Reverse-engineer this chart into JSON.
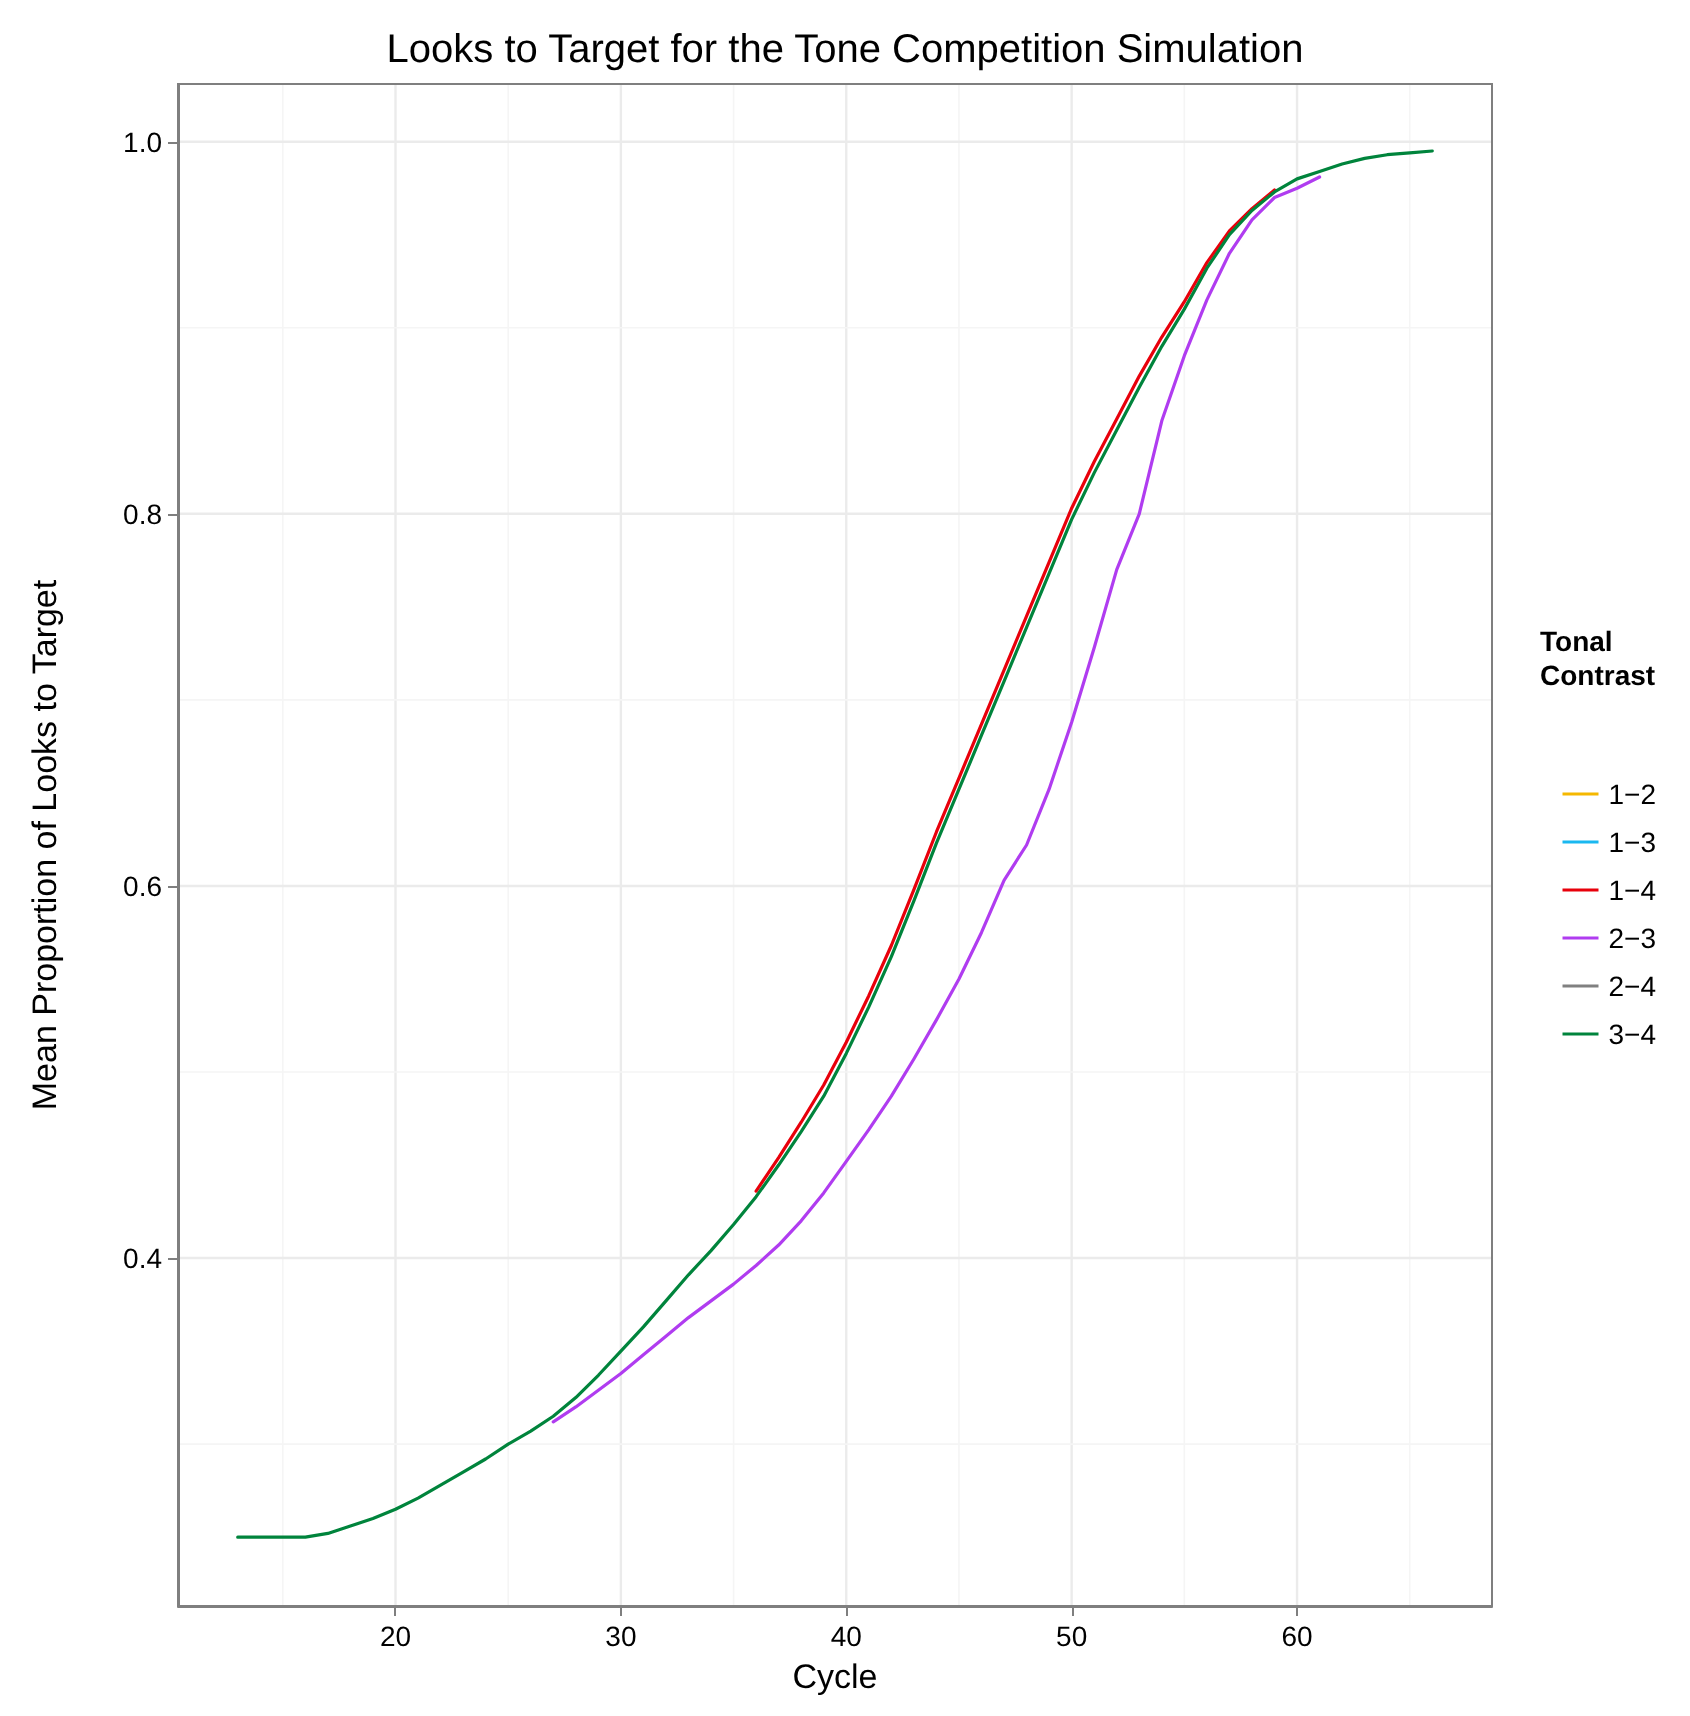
{
  "chart_data": {
    "type": "line",
    "title": "Looks to Target for the Tone Competition Simulation",
    "xlabel": "Cycle",
    "ylabel": "Mean Proportion of Looks to Target",
    "legend_title": "Tonal Contrast",
    "legend": "right",
    "grid": true,
    "marker": "none",
    "line_style": "solid",
    "x": [
      13,
      14,
      15,
      16,
      17,
      18,
      19,
      20,
      21,
      22,
      23,
      24,
      25,
      26,
      27,
      28,
      29,
      30,
      31,
      32,
      33,
      34,
      35,
      36,
      37,
      38,
      39,
      40,
      41,
      42,
      43,
      44,
      45,
      46,
      47,
      48,
      49,
      50,
      51,
      52,
      53,
      54,
      55,
      56,
      57,
      58,
      59,
      60,
      61,
      62,
      63,
      64,
      65,
      66
    ],
    "xlim": [
      10.35,
      68.65
    ],
    "xticks": [
      20,
      30,
      40,
      50,
      60
    ],
    "ylim": [
      0.213,
      1.031
    ],
    "yticks": [
      {
        "value": 0.4,
        "label": "0.4"
      },
      {
        "value": 0.6,
        "label": "0.6"
      },
      {
        "value": 0.8,
        "label": "0.8"
      },
      {
        "value": 1.0,
        "label": "1.0"
      }
    ],
    "series": [
      {
        "name": "1−2",
        "color": "#f5b800",
        "values": [
          null,
          null,
          null,
          null,
          null,
          null,
          null,
          null,
          null,
          null,
          null,
          null,
          null,
          null,
          null,
          null,
          null,
          null,
          null,
          null,
          null,
          null,
          null,
          null,
          null,
          null,
          null,
          null,
          null,
          null,
          null,
          null,
          null,
          null,
          null,
          null,
          null,
          null,
          null,
          null,
          null,
          null,
          null,
          null,
          null,
          null,
          null,
          null,
          null,
          null,
          null,
          null,
          null,
          null
        ]
      },
      {
        "name": "1−3",
        "color": "#1ab8f0",
        "values": [
          null,
          null,
          null,
          null,
          null,
          null,
          null,
          null,
          null,
          null,
          null,
          null,
          null,
          null,
          null,
          null,
          null,
          null,
          null,
          null,
          null,
          null,
          null,
          null,
          null,
          null,
          null,
          null,
          null,
          null,
          null,
          null,
          null,
          null,
          null,
          null,
          null,
          null,
          null,
          null,
          null,
          null,
          null,
          null,
          null,
          null,
          null,
          null,
          null,
          null,
          null,
          null,
          null,
          null
        ]
      },
      {
        "name": "1−4",
        "color": "#e8000b",
        "values": [
          null,
          null,
          null,
          null,
          null,
          null,
          null,
          null,
          null,
          null,
          null,
          null,
          null,
          null,
          null,
          null,
          null,
          null,
          null,
          null,
          null,
          null,
          null,
          0.436,
          0.454,
          0.473,
          0.493,
          0.516,
          0.541,
          0.568,
          0.598,
          0.629,
          0.658,
          0.687,
          0.716,
          0.745,
          0.774,
          0.803,
          0.828,
          0.851,
          0.874,
          0.895,
          0.914,
          0.935,
          0.952,
          0.964,
          0.974,
          null,
          null,
          null,
          null,
          null,
          null,
          null
        ]
      },
      {
        "name": "2−3",
        "color": "#b03cf0",
        "values": [
          null,
          null,
          null,
          null,
          null,
          null,
          null,
          null,
          null,
          null,
          null,
          null,
          null,
          null,
          0.312,
          0.32,
          0.329,
          0.338,
          0.348,
          0.358,
          0.368,
          0.377,
          0.386,
          0.396,
          0.407,
          0.42,
          0.435,
          0.452,
          0.469,
          0.487,
          0.507,
          0.528,
          0.55,
          0.575,
          0.603,
          0.622,
          0.652,
          0.688,
          0.728,
          0.77,
          0.8,
          0.85,
          0.885,
          0.915,
          0.94,
          0.958,
          0.97,
          0.975,
          0.981,
          null,
          null,
          null,
          null,
          null
        ]
      },
      {
        "name": "2−4",
        "color": "#808080",
        "values": [
          null,
          null,
          null,
          null,
          null,
          null,
          null,
          null,
          null,
          null,
          null,
          null,
          null,
          null,
          null,
          null,
          null,
          null,
          null,
          null,
          null,
          null,
          null,
          null,
          null,
          null,
          null,
          null,
          null,
          null,
          null,
          null,
          null,
          null,
          null,
          null,
          null,
          null,
          null,
          null,
          null,
          null,
          null,
          null,
          null,
          null,
          null,
          null,
          null,
          null,
          null,
          null,
          null,
          null
        ]
      },
      {
        "name": "3−4",
        "color": "#00843c",
        "values": [
          0.25,
          0.25,
          0.25,
          0.25,
          0.252,
          0.256,
          0.26,
          0.265,
          0.271,
          0.278,
          0.285,
          0.292,
          0.3,
          0.307,
          0.315,
          0.325,
          0.337,
          0.35,
          0.363,
          0.377,
          0.391,
          0.404,
          0.418,
          0.433,
          0.45,
          0.468,
          0.487,
          0.51,
          0.535,
          0.562,
          0.592,
          0.623,
          0.652,
          0.681,
          0.71,
          0.739,
          0.768,
          0.797,
          0.822,
          0.845,
          0.868,
          0.89,
          0.91,
          0.932,
          0.95,
          0.963,
          0.973,
          0.98,
          0.984,
          0.988,
          0.991,
          0.993,
          0.994,
          0.995
        ]
      }
    ]
  }
}
